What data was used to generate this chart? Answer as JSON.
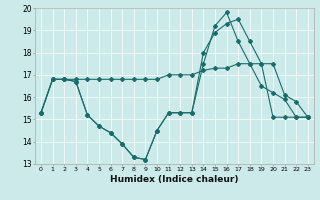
{
  "xlabel": "Humidex (Indice chaleur)",
  "xlim": [
    -0.5,
    23.5
  ],
  "ylim": [
    13,
    20
  ],
  "yticks": [
    13,
    14,
    15,
    16,
    17,
    18,
    19,
    20
  ],
  "xticks": [
    0,
    1,
    2,
    3,
    4,
    5,
    6,
    7,
    8,
    9,
    10,
    11,
    12,
    13,
    14,
    15,
    16,
    17,
    18,
    19,
    20,
    21,
    22,
    23
  ],
  "bg_color": "#cceaea",
  "line_color": "#1a6b6b",
  "lines": [
    {
      "x": [
        0,
        1,
        2,
        3,
        4,
        5,
        6,
        7,
        8,
        9,
        10,
        11,
        12,
        13,
        14,
        15,
        16,
        17,
        18,
        19,
        20,
        21,
        22,
        23
      ],
      "y": [
        15.3,
        16.8,
        16.8,
        16.8,
        16.8,
        16.8,
        16.8,
        16.8,
        16.8,
        16.8,
        16.8,
        17.0,
        17.0,
        17.0,
        17.2,
        17.3,
        17.3,
        17.5,
        17.5,
        16.5,
        16.2,
        15.9,
        15.1,
        15.1
      ]
    },
    {
      "x": [
        0,
        1,
        2,
        3,
        4,
        5,
        6,
        7,
        8,
        9,
        10,
        11,
        12,
        13,
        14,
        15,
        16,
        17,
        18,
        19,
        20,
        21,
        22,
        23
      ],
      "y": [
        15.3,
        16.8,
        16.8,
        16.7,
        15.2,
        14.7,
        14.4,
        13.9,
        13.3,
        13.2,
        14.5,
        15.3,
        15.3,
        15.3,
        18.0,
        18.9,
        19.3,
        19.5,
        18.5,
        17.5,
        17.5,
        16.1,
        15.8,
        15.1
      ]
    },
    {
      "x": [
        0,
        1,
        2,
        3,
        4,
        5,
        6,
        7,
        8,
        9,
        10,
        11,
        12,
        13,
        14,
        15,
        16,
        17,
        18,
        19,
        20,
        21,
        22,
        23
      ],
      "y": [
        15.3,
        16.8,
        16.8,
        16.7,
        15.2,
        14.7,
        14.4,
        13.9,
        13.3,
        13.2,
        14.5,
        15.3,
        15.3,
        15.3,
        17.5,
        19.2,
        19.8,
        18.5,
        17.5,
        17.5,
        15.1,
        15.1,
        15.1,
        15.1
      ]
    }
  ]
}
